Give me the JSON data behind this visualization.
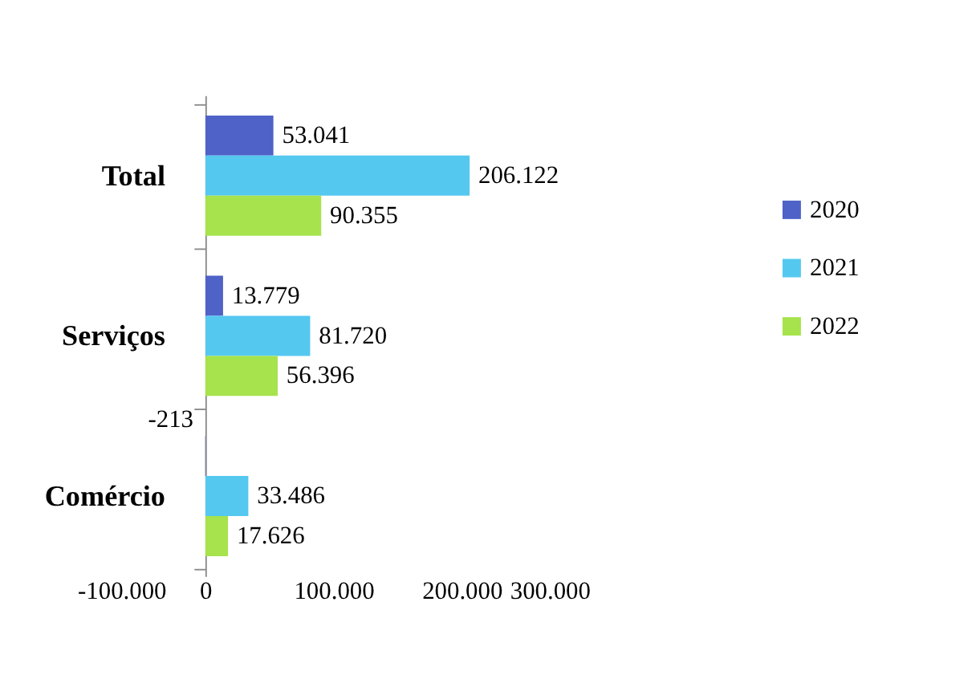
{
  "chart_data": {
    "type": "bar",
    "orientation": "horizontal",
    "categories": [
      "Total",
      "Serviços",
      "Comércio"
    ],
    "series": [
      {
        "name": "2020",
        "color": "#4f62c8",
        "values": [
          53041,
          13779,
          -213
        ],
        "value_labels": [
          "53.041",
          "13.779",
          "-213"
        ]
      },
      {
        "name": "2021",
        "color": "#55c8f0",
        "values": [
          206122,
          81720,
          33486
        ],
        "value_labels": [
          "206.122",
          "81.720",
          "33.486"
        ]
      },
      {
        "name": "2022",
        "color": "#a6e34c",
        "values": [
          90355,
          56396,
          17626
        ],
        "value_labels": [
          "90.355",
          "56.396",
          "17.626"
        ]
      }
    ],
    "xlim": [
      -100000,
      300000
    ],
    "xticks": [
      {
        "value": -100000,
        "label": "-100.000"
      },
      {
        "value": 0,
        "label": "0"
      },
      {
        "value": 100000,
        "label": "100.000"
      },
      {
        "value": 200000,
        "label": "200.000"
      },
      {
        "value": 300000,
        "label": "300.000"
      }
    ],
    "grid": false,
    "legend": "right"
  }
}
